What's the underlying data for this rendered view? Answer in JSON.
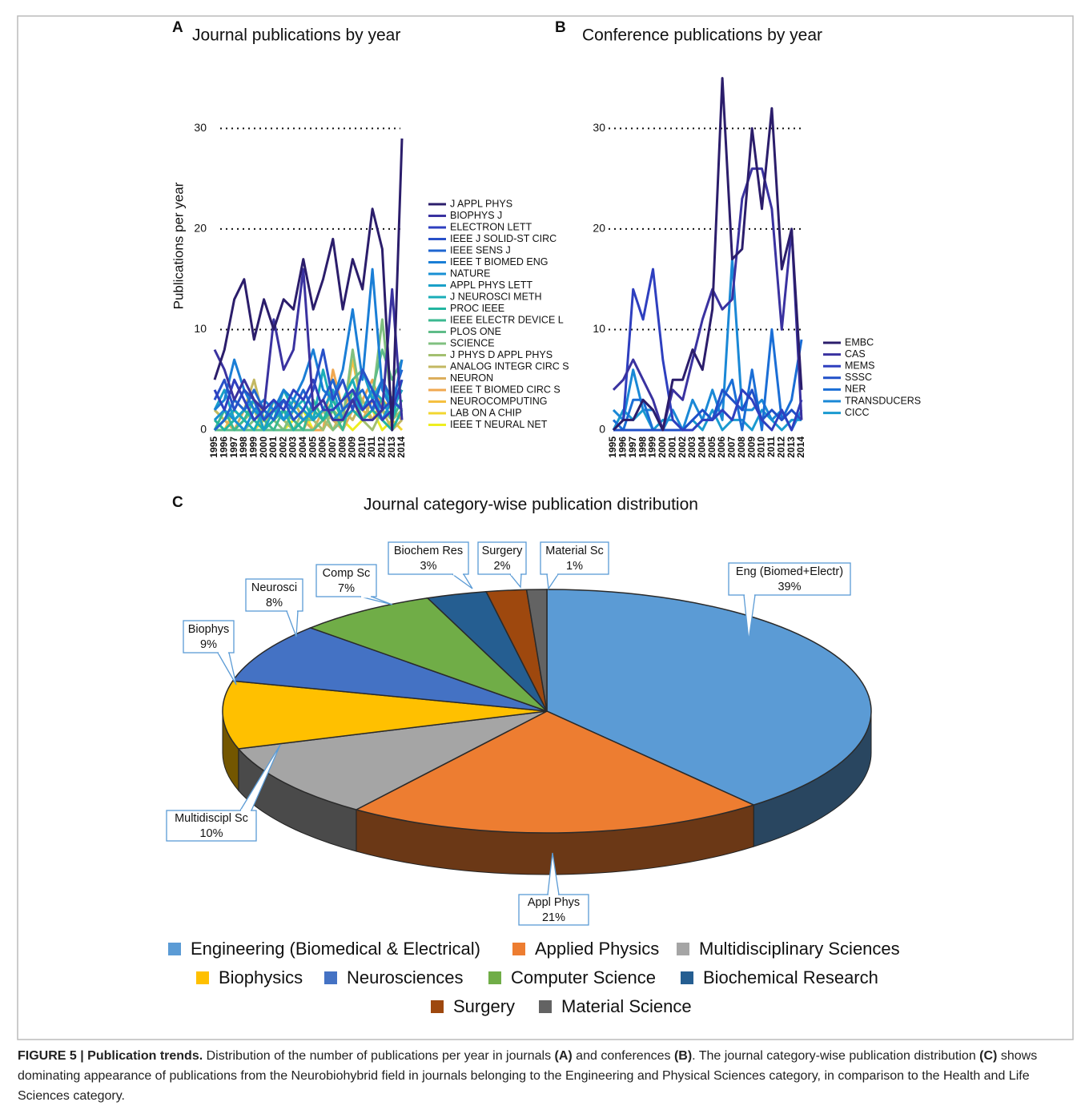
{
  "chart_data": [
    {
      "type": "line",
      "panel": "A",
      "title": "Journal publications by year",
      "ylabel": "Publications per year",
      "categories": [
        "1995",
        "1996",
        "1997",
        "1998",
        "1999",
        "2000",
        "2001",
        "2002",
        "2003",
        "2004",
        "2005",
        "2006",
        "2007",
        "2008",
        "2009",
        "2010",
        "2011",
        "2012",
        "2013",
        "2014"
      ],
      "ylim": [
        0,
        36
      ],
      "yticks": [
        0,
        10,
        20,
        30
      ],
      "grid": true,
      "series": [
        {
          "name": "J APPL PHYS",
          "color": "#2b1d6b",
          "values": [
            5,
            8,
            13,
            15,
            9,
            13,
            10,
            13,
            12,
            17,
            12,
            15,
            19,
            12,
            17,
            14,
            22,
            18,
            0,
            29
          ]
        },
        {
          "name": "BIOPHYS J",
          "color": "#3a32a0",
          "values": [
            8,
            6,
            3,
            5,
            3,
            2,
            11,
            6,
            8,
            16,
            2,
            3,
            1,
            1,
            3,
            1,
            1,
            2,
            14,
            1
          ]
        },
        {
          "name": "ELECTRON LETT",
          "color": "#2e3fbf",
          "values": [
            4,
            2,
            5,
            3,
            1,
            2,
            3,
            2,
            4,
            3,
            5,
            2,
            2,
            3,
            4,
            2,
            3,
            1,
            2,
            5
          ]
        },
        {
          "name": "IEEE J SOLID-ST CIRC",
          "color": "#2850c8",
          "values": [
            3,
            5,
            2,
            4,
            3,
            1,
            2,
            3,
            1,
            2,
            4,
            8,
            3,
            5,
            2,
            6,
            4,
            2,
            3,
            2
          ]
        },
        {
          "name": "IEEE SENS J",
          "color": "#1f66d0",
          "values": [
            0,
            1,
            3,
            2,
            4,
            2,
            1,
            3,
            2,
            4,
            2,
            3,
            5,
            2,
            3,
            4,
            2,
            5,
            3,
            6
          ]
        },
        {
          "name": "IEEE T BIOMED ENG",
          "color": "#1a7ed6",
          "values": [
            2,
            3,
            7,
            4,
            2,
            3,
            2,
            4,
            3,
            5,
            8,
            4,
            3,
            6,
            12,
            5,
            16,
            4,
            2,
            7
          ]
        },
        {
          "name": "NATURE",
          "color": "#1890d4",
          "values": [
            1,
            2,
            1,
            0,
            2,
            1,
            3,
            1,
            2,
            1,
            2,
            3,
            1,
            2,
            3,
            2,
            4,
            1,
            3,
            2
          ]
        },
        {
          "name": "APPL PHYS LETT",
          "color": "#1aa0c8",
          "values": [
            2,
            4,
            1,
            2,
            3,
            0,
            2,
            1,
            3,
            2,
            1,
            2,
            4,
            1,
            2,
            6,
            3,
            5,
            2,
            4
          ]
        },
        {
          "name": "J NEUROSCI METH",
          "color": "#1aadb8",
          "values": [
            0,
            1,
            2,
            1,
            0,
            2,
            1,
            4,
            2,
            3,
            1,
            6,
            2,
            3,
            5,
            2,
            4,
            3,
            1,
            5
          ]
        },
        {
          "name": "PROC IEEE",
          "color": "#22b5a0",
          "values": [
            1,
            0,
            1,
            2,
            1,
            0,
            1,
            2,
            0,
            1,
            2,
            1,
            3,
            1,
            2,
            1,
            2,
            1,
            0,
            2
          ]
        },
        {
          "name": "IEEE ELECTR DEVICE L",
          "color": "#3bb890",
          "values": [
            0,
            2,
            0,
            1,
            3,
            1,
            0,
            2,
            1,
            0,
            3,
            1,
            2,
            0,
            4,
            1,
            2,
            3,
            1,
            3
          ]
        },
        {
          "name": "PLOS ONE",
          "color": "#5ebc88",
          "values": [
            0,
            0,
            0,
            0,
            0,
            0,
            0,
            0,
            0,
            0,
            0,
            1,
            2,
            3,
            5,
            6,
            4,
            8,
            5,
            7
          ]
        },
        {
          "name": "SCIENCE",
          "color": "#80c080",
          "values": [
            1,
            2,
            1,
            0,
            1,
            2,
            1,
            0,
            2,
            1,
            1,
            2,
            0,
            1,
            8,
            2,
            3,
            11,
            2,
            4
          ]
        },
        {
          "name": "J PHYS D APPL PHYS",
          "color": "#a3c070",
          "values": [
            0,
            1,
            2,
            1,
            2,
            0,
            3,
            1,
            0,
            2,
            1,
            0,
            2,
            1,
            3,
            1,
            0,
            2,
            1,
            2
          ]
        },
        {
          "name": "ANALOG INTEGR CIRC S",
          "color": "#c3b862",
          "values": [
            2,
            1,
            3,
            2,
            5,
            1,
            2,
            1,
            3,
            1,
            2,
            1,
            0,
            2,
            1,
            3,
            1,
            2,
            0,
            1
          ]
        },
        {
          "name": "NEURON",
          "color": "#dcae5c",
          "values": [
            0,
            1,
            0,
            2,
            1,
            0,
            1,
            2,
            0,
            1,
            0,
            2,
            1,
            0,
            2,
            1,
            3,
            1,
            2,
            1
          ]
        },
        {
          "name": "IEEE T BIOMED CIRC S",
          "color": "#f0a850",
          "values": [
            0,
            0,
            0,
            0,
            0,
            0,
            0,
            0,
            0,
            0,
            0,
            0,
            6,
            2,
            4,
            3,
            5,
            2,
            3,
            4
          ]
        },
        {
          "name": "NEUROCOMPUTING",
          "color": "#f5c040",
          "values": [
            1,
            0,
            2,
            1,
            3,
            0,
            1,
            2,
            1,
            0,
            2,
            1,
            3,
            1,
            7,
            2,
            1,
            3,
            2,
            1
          ]
        },
        {
          "name": "LAB ON A CHIP",
          "color": "#f2d630",
          "values": [
            0,
            0,
            0,
            0,
            0,
            1,
            2,
            1,
            0,
            1,
            2,
            1,
            0,
            2,
            1,
            3,
            1,
            2,
            1,
            0
          ]
        },
        {
          "name": "IEEE T NEURAL NET",
          "color": "#eeee20",
          "values": [
            2,
            1,
            0,
            1,
            0,
            2,
            1,
            0,
            1,
            2,
            0,
            1,
            2,
            1,
            0,
            1,
            2,
            0,
            1,
            2
          ]
        }
      ]
    },
    {
      "type": "line",
      "panel": "B",
      "title": "Conference publications by year",
      "categories": [
        "1995",
        "1996",
        "1997",
        "1998",
        "1999",
        "2000",
        "2001",
        "2002",
        "2003",
        "2004",
        "2005",
        "2006",
        "2007",
        "2008",
        "2009",
        "2010",
        "2011",
        "2012",
        "2013",
        "2014"
      ],
      "ylim": [
        0,
        36
      ],
      "yticks": [
        0,
        10,
        20,
        30
      ],
      "grid": true,
      "series": [
        {
          "name": "EMBC",
          "color": "#2b1d6b",
          "values": [
            0,
            1,
            1,
            3,
            2,
            0,
            5,
            5,
            8,
            6,
            12,
            35,
            17,
            18,
            30,
            22,
            32,
            16,
            20,
            4
          ]
        },
        {
          "name": "CAS",
          "color": "#3a32a0",
          "values": [
            4,
            5,
            7,
            5,
            3,
            0,
            4,
            3,
            7,
            11,
            14,
            12,
            13,
            23,
            26,
            26,
            22,
            10,
            20,
            1
          ]
        },
        {
          "name": "MEMS",
          "color": "#2e3fbf",
          "values": [
            0,
            1,
            14,
            11,
            16,
            7,
            1,
            0,
            0,
            1,
            1,
            2,
            1,
            4,
            3,
            1,
            0,
            2,
            0,
            3
          ]
        },
        {
          "name": "SSSC",
          "color": "#2050c8",
          "values": [
            0,
            0,
            0,
            0,
            0,
            0,
            0,
            0,
            1,
            2,
            1,
            4,
            3,
            2,
            4,
            1,
            2,
            1,
            2,
            1
          ]
        },
        {
          "name": "NER",
          "color": "#1a6ed6",
          "values": [
            1,
            0,
            3,
            3,
            0,
            0,
            0,
            0,
            0,
            1,
            1,
            3,
            5,
            0,
            6,
            0,
            10,
            1,
            3,
            9
          ]
        },
        {
          "name": "TRANSDUCERS",
          "color": "#1a88d6",
          "values": [
            2,
            1,
            6,
            2,
            2,
            0,
            2,
            0,
            3,
            1,
            4,
            1,
            17,
            2,
            2,
            3,
            1,
            2,
            0,
            2
          ]
        },
        {
          "name": "CICC",
          "color": "#1a9ad0",
          "values": [
            0,
            2,
            1,
            2,
            0,
            1,
            1,
            0,
            1,
            0,
            2,
            0,
            1,
            1,
            0,
            2,
            1,
            0,
            1,
            1
          ]
        }
      ]
    },
    {
      "type": "pie",
      "panel": "C",
      "title": "Journal category-wise publication distribution",
      "slices": [
        {
          "name": "Engineering (Biomedical & Electrical)",
          "label": "Eng (Biomed+Electr)",
          "value": 39,
          "value_label": "39%",
          "color": "#5b9bd5"
        },
        {
          "name": "Applied Physics",
          "label": "Appl Phys",
          "value": 21,
          "value_label": "21%",
          "color": "#ed7d31"
        },
        {
          "name": "Multidisciplinary Sciences",
          "label": "Multidiscipl Sc",
          "value": 10,
          "value_label": "10%",
          "color": "#a5a5a5"
        },
        {
          "name": "Biophysics",
          "label": "Biophys",
          "value": 9,
          "value_label": "9%",
          "color": "#ffc000"
        },
        {
          "name": "Neurosciences",
          "label": "Neurosci",
          "value": 8,
          "value_label": "8%",
          "color": "#4472c4"
        },
        {
          "name": "Computer Science",
          "label": "Comp Sc",
          "value": 7,
          "value_label": "7%",
          "color": "#70ad47"
        },
        {
          "name": "Biochemical Research",
          "label": "Biochem Res",
          "value": 3,
          "value_label": "3%",
          "color": "#255e91"
        },
        {
          "name": "Surgery",
          "label": "Surgery",
          "value": 2,
          "value_label": "2%",
          "color": "#9e480e"
        },
        {
          "name": "Material Science",
          "label": "Material Sc",
          "value": 1,
          "value_label": "1%",
          "color": "#636363"
        }
      ]
    }
  ],
  "caption": [
    {
      "text": "FIGURE 5 | Publication trends.",
      "bold": true
    },
    {
      "text": " Distribution of the number of publications per year in journals ",
      "bold": false
    },
    {
      "text": "(A)",
      "bold": true
    },
    {
      "text": " and conferences ",
      "bold": false
    },
    {
      "text": "(B)",
      "bold": true
    },
    {
      "text": ". The journal category-wise publication distribution ",
      "bold": false
    },
    {
      "text": "(C)",
      "bold": true
    },
    {
      "text": " shows dominating appearance of publications from the Neurobiohybrid field in journals belonging to the Engineering and Physical Sciences category, in comparison to the Health and Life Sciences category.",
      "bold": false
    }
  ]
}
